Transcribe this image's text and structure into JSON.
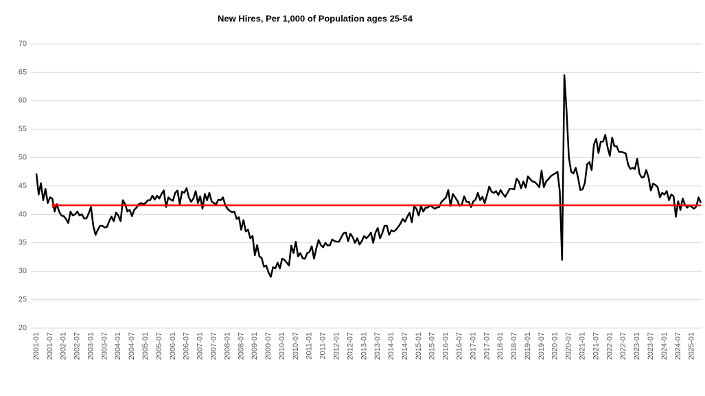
{
  "chart_data": {
    "type": "line",
    "title": "New Hires, Per 1,000 of Population ages 25-54",
    "categories": [
      "2001-01",
      null,
      null,
      null,
      null,
      null,
      "2001-07",
      null,
      null,
      null,
      null,
      null,
      "2002-01",
      null,
      null,
      null,
      null,
      null,
      "2002-07",
      null,
      null,
      null,
      null,
      null,
      "2003-01",
      null,
      null,
      null,
      null,
      null,
      "2003-07",
      null,
      null,
      null,
      null,
      null,
      "2004-01",
      null,
      null,
      null,
      null,
      null,
      "2004-07",
      null,
      null,
      null,
      null,
      null,
      "2005-01",
      null,
      null,
      null,
      null,
      null,
      "2005-07",
      null,
      null,
      null,
      null,
      null,
      "2006-01",
      null,
      null,
      null,
      null,
      null,
      "2006-07",
      null,
      null,
      null,
      null,
      null,
      "2007-01",
      null,
      null,
      null,
      null,
      null,
      "2007-07",
      null,
      null,
      null,
      null,
      null,
      "2008-01",
      null,
      null,
      null,
      null,
      null,
      "2008-07",
      null,
      null,
      null,
      null,
      null,
      "2009-01",
      null,
      null,
      null,
      null,
      null,
      "2009-07",
      null,
      null,
      null,
      null,
      null,
      "2010-01",
      null,
      null,
      null,
      null,
      null,
      "2010-07",
      null,
      null,
      null,
      null,
      null,
      "2011-01",
      null,
      null,
      null,
      null,
      null,
      "2011-07",
      null,
      null,
      null,
      null,
      null,
      "2012-01",
      null,
      null,
      null,
      null,
      null,
      "2012-07",
      null,
      null,
      null,
      null,
      null,
      "2013-01",
      null,
      null,
      null,
      null,
      null,
      "2013-07",
      null,
      null,
      null,
      null,
      null,
      "2014-01",
      null,
      null,
      null,
      null,
      null,
      "2014-07",
      null,
      null,
      null,
      null,
      null,
      "2015-01",
      null,
      null,
      null,
      null,
      null,
      "2015-07",
      null,
      null,
      null,
      null,
      null,
      "2016-01",
      null,
      null,
      null,
      null,
      null,
      "2016-07",
      null,
      null,
      null,
      null,
      null,
      "2017-01",
      null,
      null,
      null,
      null,
      null,
      "2017-07",
      null,
      null,
      null,
      null,
      null,
      "2018-01",
      null,
      null,
      null,
      null,
      null,
      "2018-07",
      null,
      null,
      null,
      null,
      null,
      "2019-01",
      null,
      null,
      null,
      null,
      null,
      "2019-07",
      null,
      null,
      null,
      null,
      null,
      "2020-01",
      null,
      null,
      null,
      null,
      null,
      "2020-07",
      null,
      null,
      null,
      null,
      null,
      "2021-01",
      null,
      null,
      null,
      null,
      null,
      "2021-07",
      null,
      null,
      null,
      null,
      null,
      "2022-01",
      null,
      null,
      null,
      null,
      null,
      "2022-07",
      null,
      null,
      null,
      null,
      null,
      "2023-01",
      null,
      null,
      null,
      null,
      null,
      "2023-07",
      null,
      null,
      null,
      null,
      null,
      "2024-01",
      null,
      null,
      null,
      null,
      null,
      "2024-07",
      null,
      null,
      null,
      null,
      null,
      "2025-01",
      null,
      null,
      null,
      null
    ],
    "values": [
      47.2,
      43.5,
      45.5,
      42.5,
      44.5,
      42,
      43,
      42.8,
      40.5,
      41.8,
      40.5,
      39.8,
      39.7,
      39.2,
      38.5,
      40.5,
      39.8,
      40,
      40.5,
      39.8,
      40,
      39.3,
      39.3,
      40.2,
      41.3,
      38,
      36.4,
      37.3,
      38,
      38,
      37.7,
      37.8,
      38.8,
      39.6,
      38.8,
      40.3,
      39.8,
      38.8,
      42.5,
      41.8,
      40.5,
      40.8,
      39.7,
      40.8,
      41.2,
      41.8,
      42,
      41.8,
      42,
      42.5,
      42.5,
      43.3,
      42.6,
      43.3,
      42.8,
      43.6,
      44.2,
      41.3,
      43,
      42.6,
      42.4,
      43.8,
      44.2,
      41.8,
      44,
      43.8,
      44.6,
      43,
      42.2,
      42.8,
      44.1,
      42,
      43.2,
      41,
      43.6,
      42.5,
      43.8,
      42.3,
      42,
      41.8,
      42.6,
      42.5,
      43,
      41.6,
      41,
      40.6,
      40.4,
      40.5,
      39.2,
      39.5,
      37.3,
      39,
      37,
      37.3,
      35.8,
      36.2,
      32.8,
      34.6,
      32.6,
      32.3,
      30.8,
      31,
      29.8,
      29,
      30.7,
      30.5,
      31.5,
      30.5,
      32.2,
      32,
      31.5,
      31,
      34.5,
      33.2,
      35.2,
      32.6,
      33.2,
      32.3,
      32.2,
      33.2,
      33.4,
      34.4,
      32.2,
      34,
      35.5,
      34.6,
      34.2,
      35,
      34.5,
      34.6,
      35.6,
      35.3,
      35.2,
      35.2,
      36,
      36.7,
      36.8,
      35.3,
      36.6,
      36,
      35,
      35.8,
      34.7,
      35.3,
      36.2,
      35.8,
      36.2,
      36.8,
      35,
      36.8,
      37.6,
      35.8,
      36.7,
      38,
      38,
      36.4,
      37.2,
      37,
      37.3,
      37.8,
      38.4,
      39.2,
      38.7,
      39.6,
      40.3,
      38.6,
      41.4,
      41,
      39.8,
      41.5,
      40.5,
      41.2,
      41.2,
      41.6,
      41.3,
      41,
      41.2,
      41.3,
      42.2,
      42.6,
      43,
      44.3,
      41.5,
      43.6,
      43,
      42.4,
      41.5,
      41.8,
      43.2,
      42.2,
      42.2,
      41.3,
      42.3,
      42.6,
      43.8,
      42.5,
      43.1,
      42,
      43.4,
      44.9,
      44,
      43.8,
      44.1,
      43.4,
      44.3,
      43.6,
      43.1,
      43.8,
      44.5,
      44.5,
      44.4,
      46.3,
      45.8,
      44.6,
      45.8,
      44.7,
      46.7,
      46.2,
      45.8,
      45.7,
      45.3,
      44.8,
      47.7,
      44.8,
      45.8,
      46.2,
      46.7,
      47,
      47.2,
      47.5,
      44,
      32,
      64.5,
      58,
      50,
      47.5,
      47.2,
      48.2,
      46.5,
      44.3,
      44.4,
      45.5,
      48.8,
      49.2,
      47.8,
      52.3,
      53.3,
      50.8,
      52.8,
      52.8,
      54,
      51.8,
      50.3,
      53.5,
      52,
      52,
      51,
      51,
      50.9,
      50.7,
      48.8,
      48,
      48.2,
      48,
      49.8,
      47.2,
      46.5,
      46.6,
      47.8,
      46.5,
      44.2,
      45.4,
      45.2,
      44.8,
      43,
      43.8,
      43.5,
      44.1,
      42.5,
      43.5,
      43.2,
      39.6,
      42.3,
      40.8,
      42.8,
      41.7,
      41.2,
      41.6,
      41.3,
      41,
      41.4,
      43,
      42
    ],
    "color": "#000000",
    "ylim": [
      20,
      70
    ],
    "yticks": [
      20,
      25,
      30,
      35,
      40,
      45,
      50,
      55,
      60,
      65,
      70
    ],
    "grid": true,
    "reference_line": {
      "value": 41.6,
      "color": "#ff0000"
    }
  }
}
